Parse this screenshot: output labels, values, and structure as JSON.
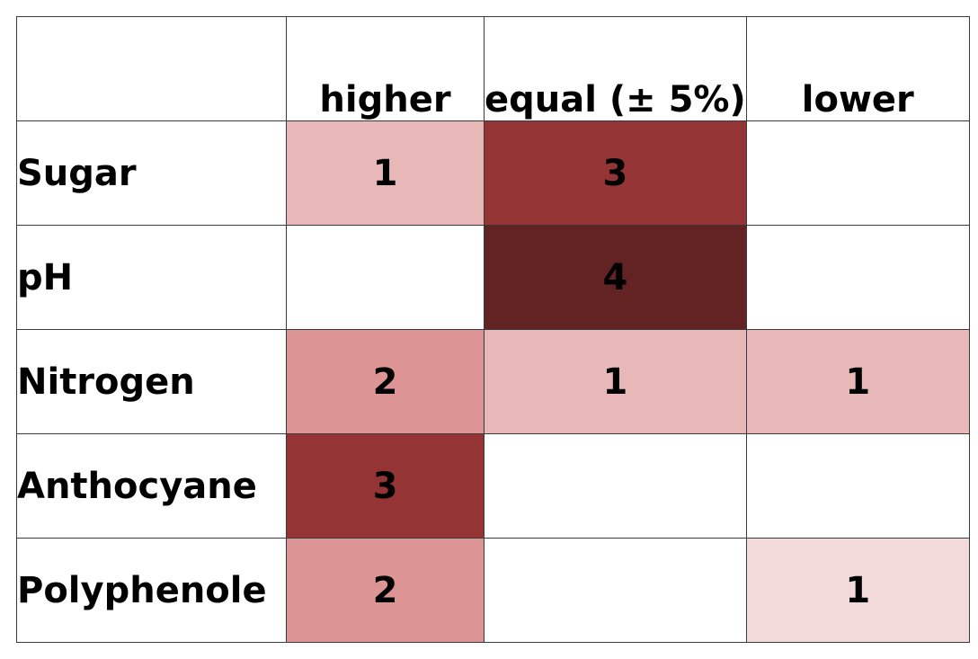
{
  "chart_data": {
    "type": "heatmap",
    "title": "",
    "columns": [
      "higher",
      "equal (± 5%)",
      "lower"
    ],
    "rows": [
      "Sugar",
      "pH",
      "Nitrogen",
      "Anthocyane",
      "Polyphenole"
    ],
    "values": [
      [
        1,
        3,
        null
      ],
      [
        null,
        4,
        null
      ],
      [
        2,
        1,
        1
      ],
      [
        3,
        null,
        null
      ],
      [
        2,
        null,
        1
      ]
    ],
    "cell_colors": [
      [
        "#e8b8b8",
        "#943434",
        "#ffffff"
      ],
      [
        "#ffffff",
        "#632323",
        "#ffffff"
      ],
      [
        "#dc9494",
        "#e8b8b8",
        "#e8b8b8"
      ],
      [
        "#943434",
        "#ffffff",
        "#ffffff"
      ],
      [
        "#dc9494",
        "#ffffff",
        "#f2dada"
      ]
    ]
  }
}
